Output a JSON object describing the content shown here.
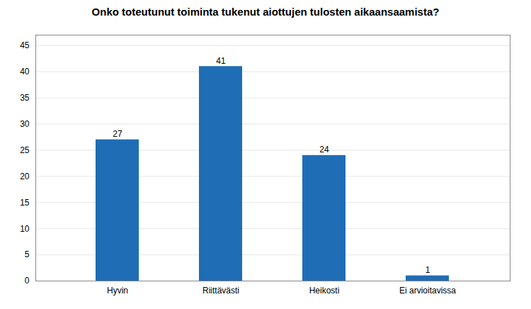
{
  "chart_data": {
    "type": "bar",
    "title": "Onko toteutunut toiminta tukenut aiottujen tulosten aikaansaamista?",
    "categories": [
      "Hyvin",
      "Riittävästi",
      "Heikosti",
      "Ei arvioitavissa"
    ],
    "values": [
      27,
      41,
      24,
      1
    ],
    "color": "#1F6DB5",
    "ylim": [
      0,
      47
    ],
    "yticks": [
      0,
      5,
      10,
      15,
      20,
      25,
      30,
      35,
      40,
      45
    ],
    "grid": true,
    "data_labels": true
  }
}
